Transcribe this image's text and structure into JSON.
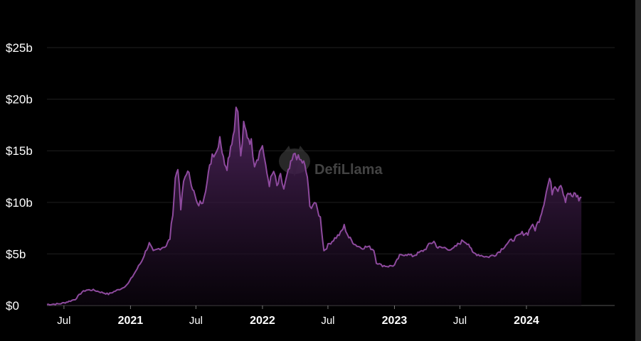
{
  "chart_data": {
    "type": "area",
    "y_unit_prefix": "$",
    "y_unit_suffix": "b",
    "ylim": [
      0,
      27
    ],
    "y_ticks": [
      {
        "value": 0,
        "label": "$0"
      },
      {
        "value": 5,
        "label": "$5b"
      },
      {
        "value": 10,
        "label": "$10b"
      },
      {
        "value": 15,
        "label": "$15b"
      },
      {
        "value": 20,
        "label": "$20b"
      },
      {
        "value": 25,
        "label": "$25b"
      }
    ],
    "x_range": [
      "2020-05-15",
      "2024-09-01"
    ],
    "x_ticks": [
      {
        "date": "2020-07-01",
        "label": "Jul",
        "bold": false
      },
      {
        "date": "2021-01-01",
        "label": "2021",
        "bold": true
      },
      {
        "date": "2021-07-01",
        "label": "Jul",
        "bold": false
      },
      {
        "date": "2022-01-01",
        "label": "2022",
        "bold": true
      },
      {
        "date": "2022-07-01",
        "label": "Jul",
        "bold": false
      },
      {
        "date": "2023-01-01",
        "label": "2023",
        "bold": true
      },
      {
        "date": "2023-07-01",
        "label": "Jul",
        "bold": false
      },
      {
        "date": "2024-01-01",
        "label": "2024",
        "bold": true
      }
    ],
    "grid": true,
    "legend": "none",
    "series": [
      {
        "color": "#8e4a9e",
        "points": [
          [
            "2020-05-15",
            0.1
          ],
          [
            "2020-06-15",
            0.15
          ],
          [
            "2020-07-01",
            0.25
          ],
          [
            "2020-07-15",
            0.4
          ],
          [
            "2020-08-01",
            0.6
          ],
          [
            "2020-08-20",
            1.3
          ],
          [
            "2020-09-01",
            1.5
          ],
          [
            "2020-09-20",
            1.5
          ],
          [
            "2020-10-10",
            1.3
          ],
          [
            "2020-11-01",
            1.1
          ],
          [
            "2020-11-20",
            1.4
          ],
          [
            "2020-12-10",
            1.7
          ],
          [
            "2020-12-25",
            2.1
          ],
          [
            "2021-01-15",
            3.3
          ],
          [
            "2021-02-01",
            4.3
          ],
          [
            "2021-02-15",
            5.5
          ],
          [
            "2021-02-22",
            6.0
          ],
          [
            "2021-03-05",
            5.2
          ],
          [
            "2021-03-20",
            5.5
          ],
          [
            "2021-04-10",
            5.8
          ],
          [
            "2021-04-20",
            6.5
          ],
          [
            "2021-04-28",
            9.0
          ],
          [
            "2021-05-05",
            12.3
          ],
          [
            "2021-05-12",
            13.5
          ],
          [
            "2021-05-20",
            9.3
          ],
          [
            "2021-05-28",
            12.0
          ],
          [
            "2021-06-05",
            13.0
          ],
          [
            "2021-06-15",
            12.4
          ],
          [
            "2021-06-25",
            11.0
          ],
          [
            "2021-07-05",
            9.7
          ],
          [
            "2021-07-20",
            10.2
          ],
          [
            "2021-08-01",
            12.0
          ],
          [
            "2021-08-15",
            14.7
          ],
          [
            "2021-08-28",
            15.0
          ],
          [
            "2021-09-05",
            16.5
          ],
          [
            "2021-09-15",
            14.2
          ],
          [
            "2021-09-25",
            13.5
          ],
          [
            "2021-10-05",
            15.5
          ],
          [
            "2021-10-15",
            17.0
          ],
          [
            "2021-10-20",
            19.8
          ],
          [
            "2021-10-25",
            18.5
          ],
          [
            "2021-11-02",
            14.3
          ],
          [
            "2021-11-10",
            17.4
          ],
          [
            "2021-11-20",
            16.5
          ],
          [
            "2021-12-01",
            15.8
          ],
          [
            "2021-12-10",
            13.8
          ],
          [
            "2021-12-20",
            14.5
          ],
          [
            "2022-01-01",
            15.6
          ],
          [
            "2022-01-10",
            13.3
          ],
          [
            "2022-01-20",
            11.8
          ],
          [
            "2022-02-01",
            13.0
          ],
          [
            "2022-02-10",
            11.5
          ],
          [
            "2022-02-20",
            12.5
          ],
          [
            "2022-03-01",
            11.3
          ],
          [
            "2022-03-10",
            12.5
          ],
          [
            "2022-03-20",
            13.6
          ],
          [
            "2022-04-01",
            14.8
          ],
          [
            "2022-04-10",
            14.2
          ],
          [
            "2022-04-25",
            13.8
          ],
          [
            "2022-05-05",
            12.5
          ],
          [
            "2022-05-12",
            9.5
          ],
          [
            "2022-05-25",
            10.0
          ],
          [
            "2022-06-10",
            8.5
          ],
          [
            "2022-06-20",
            5.3
          ],
          [
            "2022-07-05",
            6.0
          ],
          [
            "2022-07-20",
            6.5
          ],
          [
            "2022-08-05",
            7.0
          ],
          [
            "2022-08-15",
            7.7
          ],
          [
            "2022-08-28",
            6.6
          ],
          [
            "2022-09-15",
            5.9
          ],
          [
            "2022-10-01",
            5.6
          ],
          [
            "2022-10-20",
            5.7
          ],
          [
            "2022-11-05",
            5.4
          ],
          [
            "2022-11-12",
            4.2
          ],
          [
            "2022-11-25",
            3.9
          ],
          [
            "2022-12-15",
            3.8
          ],
          [
            "2023-01-01",
            3.9
          ],
          [
            "2023-01-15",
            4.8
          ],
          [
            "2023-02-01",
            5.0
          ],
          [
            "2023-02-20",
            4.8
          ],
          [
            "2023-03-10",
            5.1
          ],
          [
            "2023-03-25",
            5.4
          ],
          [
            "2023-04-10",
            6.0
          ],
          [
            "2023-04-20",
            6.2
          ],
          [
            "2023-05-01",
            5.6
          ],
          [
            "2023-05-20",
            5.6
          ],
          [
            "2023-06-10",
            5.4
          ],
          [
            "2023-06-25",
            5.9
          ],
          [
            "2023-07-10",
            6.3
          ],
          [
            "2023-07-25",
            6.0
          ],
          [
            "2023-08-05",
            5.1
          ],
          [
            "2023-08-25",
            4.9
          ],
          [
            "2023-09-15",
            4.7
          ],
          [
            "2023-10-05",
            4.9
          ],
          [
            "2023-10-20",
            5.3
          ],
          [
            "2023-11-05",
            5.9
          ],
          [
            "2023-11-20",
            6.3
          ],
          [
            "2023-12-05",
            6.6
          ],
          [
            "2023-12-20",
            7.0
          ],
          [
            "2024-01-05",
            7.0
          ],
          [
            "2024-01-15",
            7.8
          ],
          [
            "2024-01-25",
            7.4
          ],
          [
            "2024-02-05",
            8.3
          ],
          [
            "2024-02-15",
            9.5
          ],
          [
            "2024-02-25",
            11.0
          ],
          [
            "2024-03-05",
            12.3
          ],
          [
            "2024-03-12",
            11.0
          ],
          [
            "2024-03-20",
            11.8
          ],
          [
            "2024-03-28",
            11.3
          ],
          [
            "2024-04-05",
            11.9
          ],
          [
            "2024-04-12",
            11.0
          ],
          [
            "2024-04-18",
            10.1
          ],
          [
            "2024-04-25",
            10.9
          ],
          [
            "2024-05-05",
            10.5
          ],
          [
            "2024-05-15",
            10.9
          ],
          [
            "2024-05-25",
            10.3
          ],
          [
            "2024-06-01",
            10.5
          ]
        ]
      }
    ]
  },
  "watermark": {
    "text": "DefiLlama",
    "icon": "llama-icon"
  }
}
